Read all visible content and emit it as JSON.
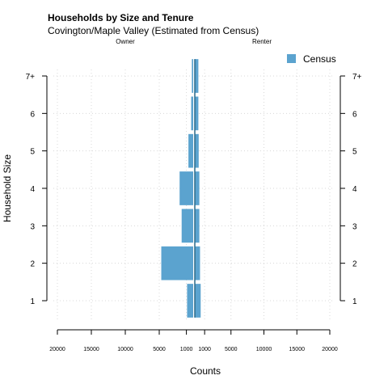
{
  "chart_data": {
    "type": "bar",
    "orientation": "horizontal",
    "layout": "back-to-back (pyramid)",
    "title": "Households by Size and Tenure",
    "subtitle": "Covington/Maple Valley (Estimated from Census)",
    "left_panel_label": "Owner",
    "right_panel_label": "Renter",
    "xlabel": "Counts",
    "ylabel": "Household Size",
    "categories": [
      "1",
      "2",
      "3",
      "4",
      "5",
      "6",
      "7+"
    ],
    "x_tick_labels": [
      "20000",
      "15000",
      "10000",
      "5000",
      "1000",
      "1000",
      "5000",
      "10000",
      "15000",
      "20000"
    ],
    "xlim": [
      0,
      20000
    ],
    "series": [
      {
        "name": "Census",
        "color": "#5ba3cf",
        "owner": [
          900,
          4700,
          1700,
          2000,
          700,
          300,
          200
        ],
        "renter": [
          400,
          300,
          200,
          200,
          100,
          50,
          50
        ]
      }
    ],
    "legend_position": "top-right",
    "grid": true
  }
}
